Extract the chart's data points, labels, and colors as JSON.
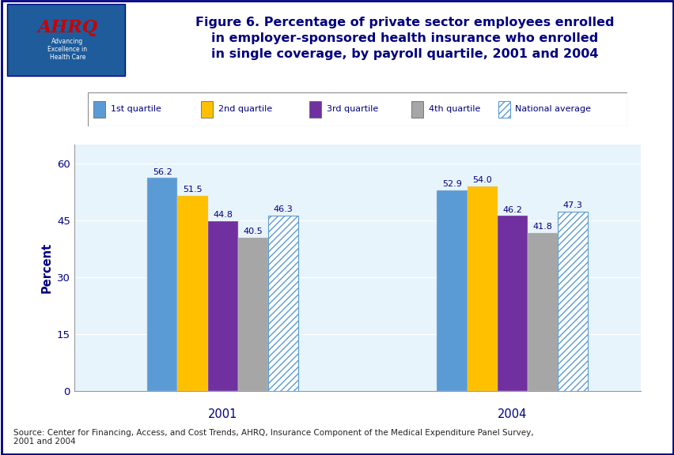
{
  "title": "Figure 6. Percentage of private sector employees enrolled\nin employer-sponsored health insurance who enrolled\nin single coverage, by payroll quartile, 2001 and 2004",
  "groups": [
    "2001",
    "2004"
  ],
  "categories": [
    "1st quartile",
    "2nd quartile",
    "3rd quartile",
    "4th quartile",
    "National average"
  ],
  "values_2001": [
    56.2,
    51.5,
    44.8,
    40.5,
    46.3
  ],
  "values_2004": [
    52.9,
    54.0,
    46.2,
    41.8,
    47.3
  ],
  "bar_colors": [
    "#5B9BD5",
    "#FFC000",
    "#7030A0",
    "#A6A6A6",
    "#5B9BD5"
  ],
  "ylabel": "Percent",
  "yticks": [
    0,
    15,
    30,
    45,
    60
  ],
  "ylim": [
    0,
    65
  ],
  "source_text": "Source: Center for Financing, Access, and Cost Trends, AHRQ, Insurance Component of the Medical Expenditure Panel Survey,\n2001 and 2004",
  "bg_light": "#E8F4FC",
  "bg_white": "#FFFFFF",
  "title_color": "#000080",
  "label_color": "#000080",
  "dark_blue": "#000080",
  "header_logo_bg": "#1E5C9B"
}
